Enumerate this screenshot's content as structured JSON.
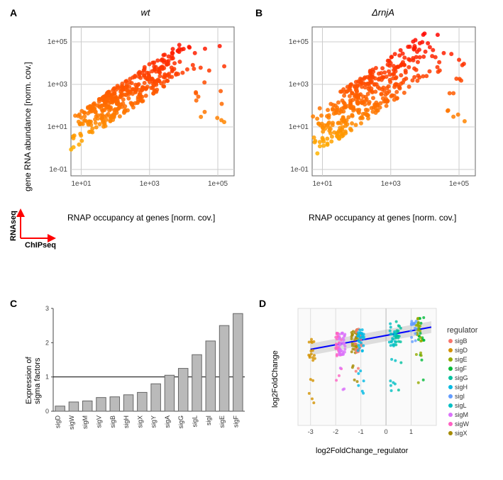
{
  "panelA": {
    "label": "A",
    "title": "wt",
    "type": "scatter",
    "xlabel": "RNAP occupancy at genes [norm. cov.]",
    "ylabel": "gene RNA abundance [norm. cov.]",
    "scale": "log",
    "xticks": [
      "1e+01",
      "1e+03",
      "1e+05"
    ],
    "yticks": [
      "1e-01",
      "1e+01",
      "1e+03",
      "1e+05"
    ],
    "xlim": [
      5,
      300000
    ],
    "ylim": [
      0.05,
      500000
    ],
    "background": "#ffffff",
    "grid_color": "#cccccc",
    "n_points": 400,
    "color_low": "#ffcc00",
    "color_high": "#ff0000",
    "label_fontsize": 12
  },
  "panelB": {
    "label": "B",
    "title": "ΔrnjA",
    "type": "scatter",
    "xlabel": "RNAP occupancy at genes [norm. cov.]",
    "ylabel": "",
    "scale": "log",
    "xticks": [
      "1e+01",
      "1e+03",
      "1e+05"
    ],
    "yticks": [
      "1e-01",
      "1e+01",
      "1e+03",
      "1e+05"
    ],
    "xlim": [
      5,
      300000
    ],
    "ylim": [
      0.05,
      500000
    ],
    "background": "#ffffff",
    "grid_color": "#cccccc",
    "n_points": 400,
    "color_low": "#ffcc00",
    "color_high": "#ff0000",
    "label_fontsize": 12
  },
  "arrows": {
    "y_label": "RNAseq",
    "x_label": "ChIPseq",
    "color": "#ff0000"
  },
  "panelC": {
    "label": "C",
    "type": "bar",
    "ylabel": "Expression of\nsigma factors",
    "categories": [
      "sigD",
      "sigW",
      "sigM",
      "sigV",
      "sigB",
      "sigH",
      "sigX",
      "sigY",
      "sigA",
      "sigG",
      "sigL",
      "sigI",
      "sigE",
      "sigF"
    ],
    "values": [
      0.15,
      0.27,
      0.3,
      0.4,
      0.42,
      0.48,
      0.55,
      0.8,
      1.05,
      1.25,
      1.65,
      2.05,
      2.5,
      2.85
    ],
    "ylim": [
      0,
      3
    ],
    "yticks": [
      0,
      1,
      2,
      3
    ],
    "bar_color": "#bababa",
    "bar_border": "#666666",
    "hline_y": 1,
    "hline_color": "#000000",
    "label_fontsize": 11,
    "tick_fontsize": 9
  },
  "panelD": {
    "label": "D",
    "type": "scatter",
    "xlabel": "log2FoldChange_regulator",
    "ylabel": "log2FoldChange",
    "xlim": [
      -3.5,
      2
    ],
    "ylim": [
      -7,
      3
    ],
    "xticks": [
      -3,
      -2,
      -1,
      0,
      1
    ],
    "legend_title": "regulator",
    "legend_items": [
      {
        "name": "sigB",
        "color": "#f8766d"
      },
      {
        "name": "sigD",
        "color": "#d39200"
      },
      {
        "name": "sigE",
        "color": "#93aa00"
      },
      {
        "name": "sigF",
        "color": "#00ba38"
      },
      {
        "name": "sigG",
        "color": "#00c19f"
      },
      {
        "name": "sigH",
        "color": "#00b9e3"
      },
      {
        "name": "sigI",
        "color": "#619cff"
      },
      {
        "name": "sigL",
        "color": "#00bfc4"
      },
      {
        "name": "sigM",
        "color": "#db72fb"
      },
      {
        "name": "sigW",
        "color": "#ff61c3"
      },
      {
        "name": "sigX",
        "color": "#a58b00"
      }
    ],
    "strip_x_positions": {
      "sigD": -2.95,
      "sigW": -1.9,
      "sigM": -1.75,
      "sigX": -1.25,
      "sigB": -1.1,
      "sigH": -1.0,
      "sigF": 1.4,
      "sigE": 1.3,
      "sigG": 0.48,
      "sigL": 0.25,
      "sigI": 1.1
    },
    "regression_color": "#0000ff",
    "regression_fill": "#88888840",
    "grid_color": "#dddddd",
    "background": "#ffffff"
  }
}
